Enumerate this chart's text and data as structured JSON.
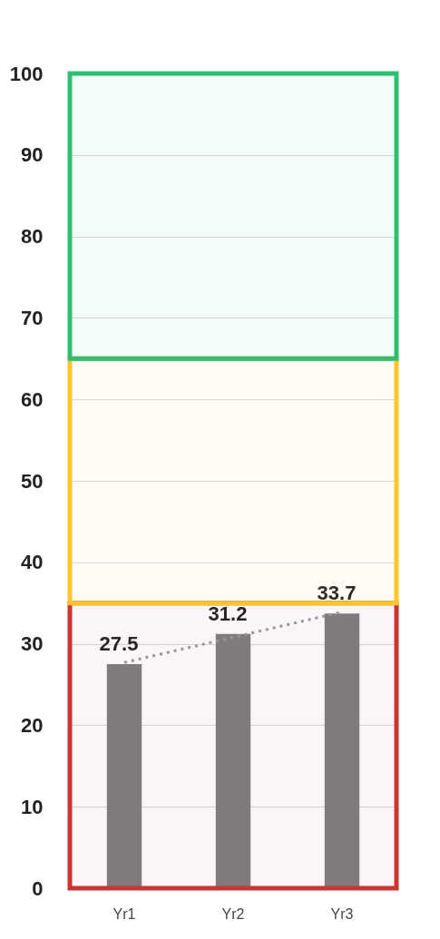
{
  "chart_data": {
    "type": "bar",
    "categories": [
      "Yr1",
      "Yr2",
      "Yr3"
    ],
    "series": [
      {
        "color": "#7f7f7f",
        "values": [
          27.5,
          31.2,
          33.7
        ],
        "value_labels": [
          "27.5",
          "31.2",
          "33.7"
        ]
      },
      {
        "type": "line",
        "color": "#9a9a9a",
        "line_style": "dotted",
        "values": [
          27.7,
          30.8,
          33.9
        ]
      }
    ],
    "ylim": [
      0,
      100
    ],
    "yticks": [
      0,
      10,
      20,
      30,
      40,
      50,
      60,
      70,
      80,
      90,
      100
    ],
    "grid": "y",
    "bands": [
      {
        "axis": "y",
        "from": 0,
        "to": 35,
        "color": "#cc3333"
      },
      {
        "axis": "y",
        "from": 35,
        "to": 65,
        "color": "#fcc52c"
      },
      {
        "axis": "y",
        "from": 65,
        "to": 100,
        "color": "#2fbf71"
      }
    ]
  }
}
